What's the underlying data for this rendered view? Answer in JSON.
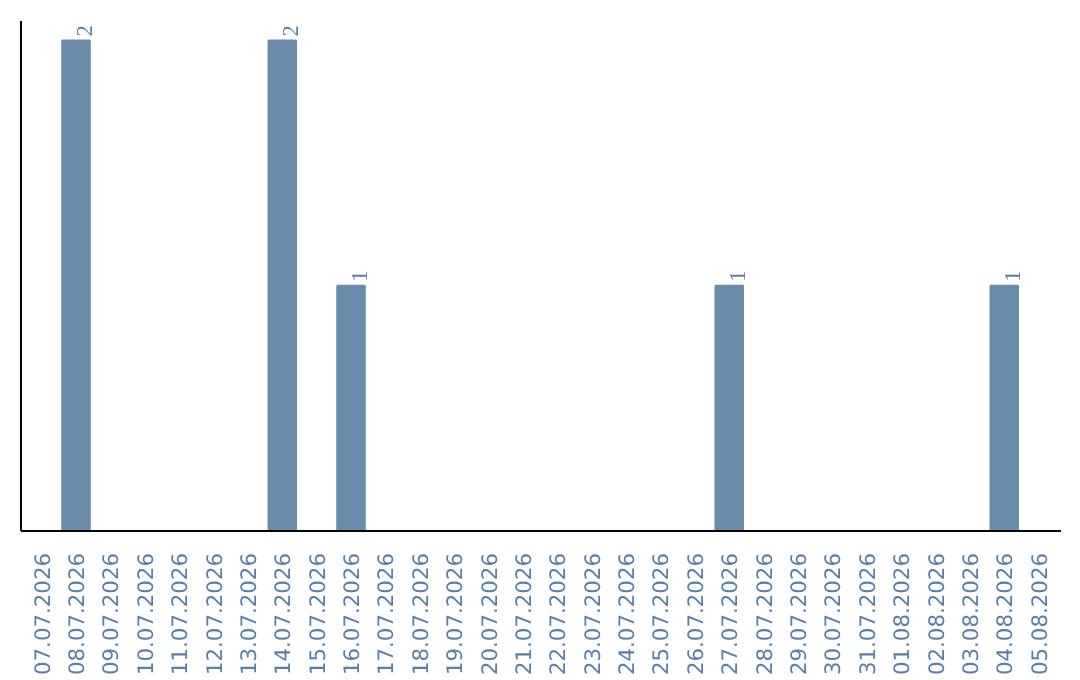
{
  "chart_data": {
    "type": "bar",
    "categories": [
      "07.07.2026",
      "08.07.2026",
      "09.07.2026",
      "10.07.2026",
      "11.07.2026",
      "12.07.2026",
      "13.07.2026",
      "14.07.2026",
      "15.07.2026",
      "16.07.2026",
      "17.07.2026",
      "18.07.2026",
      "19.07.2026",
      "20.07.2026",
      "21.07.2026",
      "22.07.2026",
      "23.07.2026",
      "24.07.2026",
      "25.07.2026",
      "26.07.2026",
      "27.07.2026",
      "28.07.2026",
      "29.07.2026",
      "30.07.2026",
      "31.07.2026",
      "01.08.2026",
      "02.08.2026",
      "03.08.2026",
      "04.08.2026",
      "05.08.2026"
    ],
    "values": [
      0,
      2,
      0,
      0,
      0,
      0,
      0,
      2,
      0,
      1,
      0,
      0,
      0,
      0,
      0,
      0,
      0,
      0,
      0,
      0,
      1,
      0,
      0,
      0,
      0,
      0,
      0,
      0,
      1,
      0
    ],
    "value_labels": [
      null,
      "2",
      null,
      null,
      null,
      null,
      null,
      "2",
      null,
      "1",
      null,
      null,
      null,
      null,
      null,
      null,
      null,
      null,
      null,
      null,
      "1",
      null,
      null,
      null,
      null,
      null,
      null,
      null,
      "1",
      null
    ],
    "color": "#6a8caa",
    "ylim": [
      0,
      2.08
    ],
    "grid": false,
    "tick_labels": "x"
  }
}
